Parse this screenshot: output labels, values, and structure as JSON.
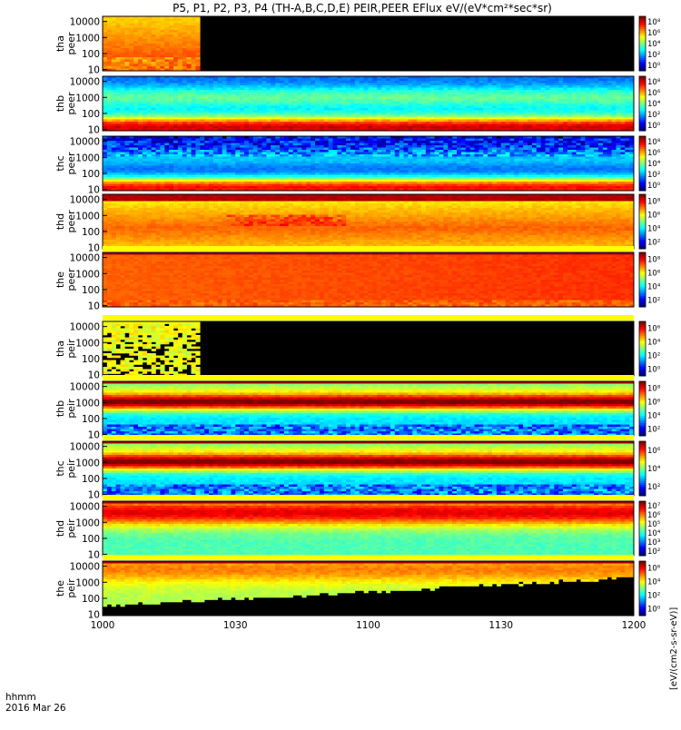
{
  "title": "P5, P1, P2, P3, P4 (TH-A,B,C,D,E) PEIR,PEER EFlux eV/(eV*cm²*sec*sr)",
  "footer": {
    "line1": "hhmm",
    "line2": "2016 Mar 26"
  },
  "colorbar_label": "[eV/(cm2-s-sr-eV)]",
  "colors": {
    "background": "#000000",
    "frame": "#000000",
    "separator": "#ffff00"
  },
  "chart_data": {
    "type": "heatmap",
    "xlabel": "",
    "x_ticks": [
      "1000",
      "1030",
      "1100",
      "1130",
      "1200"
    ],
    "x_range_minutes": [
      0,
      120
    ],
    "y_scale": "log",
    "y_ticks": [
      "10",
      "100",
      "1000",
      "10000"
    ],
    "panels": [
      {
        "probe": "tha",
        "species": "peer",
        "ylabel": [
          "tha",
          "peer"
        ],
        "cbar_ticks": [
          "10⁰",
          "10²",
          "10⁴",
          "10⁶",
          "10⁸"
        ],
        "data_end_minute": 22,
        "pattern": "orange-block",
        "top_band": false
      },
      {
        "probe": "thb",
        "species": "peer",
        "ylabel": [
          "thb",
          "peer"
        ],
        "cbar_ticks": [
          "10⁰",
          "10²",
          "10⁴",
          "10⁶",
          "10⁸"
        ],
        "data_end_minute": 120,
        "pattern": "electron-cool",
        "top_band": false
      },
      {
        "probe": "thc",
        "species": "peer",
        "ylabel": [
          "thc",
          "peer"
        ],
        "cbar_ticks": [
          "10⁰",
          "10²",
          "10⁴",
          "10⁶",
          "10⁸"
        ],
        "data_end_minute": 120,
        "pattern": "electron-noisy",
        "top_band": false
      },
      {
        "probe": "thd",
        "species": "peer",
        "ylabel": [
          "thd",
          "peer"
        ],
        "cbar_ticks": [
          "10²",
          "10⁴",
          "10⁶",
          "10⁸"
        ],
        "data_end_minute": 120,
        "pattern": "electron-hot",
        "top_band": false
      },
      {
        "probe": "the",
        "species": "peer",
        "ylabel": [
          "the",
          "peer"
        ],
        "cbar_ticks": [
          "10²",
          "10⁴",
          "10⁶",
          "10⁸"
        ],
        "data_end_minute": 120,
        "pattern": "electron-sheet",
        "top_band": true
      },
      {
        "probe": "tha",
        "species": "peir",
        "ylabel": [
          "tha",
          "peir"
        ],
        "cbar_ticks": [
          "10⁰",
          "10²",
          "10⁴",
          "10⁶"
        ],
        "data_end_minute": 22,
        "pattern": "ion-sparse",
        "top_band": true
      },
      {
        "probe": "thb",
        "species": "peir",
        "ylabel": [
          "thb",
          "peir"
        ],
        "cbar_ticks": [
          "10²",
          "10⁴",
          "10⁶",
          "10⁸"
        ],
        "data_end_minute": 120,
        "pattern": "ion-band",
        "top_band": true
      },
      {
        "probe": "thc",
        "species": "peir",
        "ylabel": [
          "thc",
          "peir"
        ],
        "cbar_ticks": [
          "10²",
          "10⁴",
          "10⁶"
        ],
        "data_end_minute": 120,
        "pattern": "ion-band2",
        "top_band": true
      },
      {
        "probe": "thd",
        "species": "peir",
        "ylabel": [
          "thd",
          "peir"
        ],
        "cbar_ticks": [
          "10²",
          "10³",
          "10⁴",
          "10⁵",
          "10⁶",
          "10⁷"
        ],
        "data_end_minute": 120,
        "pattern": "ion-broad",
        "top_band": true
      },
      {
        "probe": "the",
        "species": "peir",
        "ylabel": [
          "the",
          "peir"
        ],
        "cbar_ticks": [
          "10⁰",
          "10²",
          "10⁴",
          "10⁶"
        ],
        "data_end_minute": 120,
        "pattern": "ion-rising",
        "top_band": true
      }
    ]
  }
}
